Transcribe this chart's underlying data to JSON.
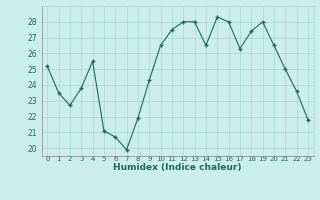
{
  "x": [
    0,
    1,
    2,
    3,
    4,
    5,
    6,
    7,
    8,
    9,
    10,
    11,
    12,
    13,
    14,
    15,
    16,
    17,
    18,
    19,
    20,
    21,
    22,
    23
  ],
  "y": [
    25.2,
    23.5,
    22.7,
    23.8,
    25.5,
    21.1,
    20.7,
    19.9,
    21.9,
    24.3,
    26.5,
    27.5,
    28.0,
    28.0,
    26.5,
    28.3,
    28.0,
    26.3,
    27.4,
    28.0,
    26.5,
    25.0,
    23.6,
    21.8
  ],
  "xlabel": "Humidex (Indice chaleur)",
  "ylim": [
    19.5,
    29.0
  ],
  "xlim": [
    -0.5,
    23.5
  ],
  "yticks": [
    20,
    21,
    22,
    23,
    24,
    25,
    26,
    27,
    28
  ],
  "xticks": [
    0,
    1,
    2,
    3,
    4,
    5,
    6,
    7,
    8,
    9,
    10,
    11,
    12,
    13,
    14,
    15,
    16,
    17,
    18,
    19,
    20,
    21,
    22,
    23
  ],
  "xtick_labels": [
    "0",
    "1",
    "2",
    "3",
    "4",
    "5",
    "6",
    "7",
    "8",
    "9",
    "10",
    "11",
    "12",
    "13",
    "14",
    "15",
    "16",
    "17",
    "18",
    "19",
    "20",
    "21",
    "22",
    "23"
  ],
  "line_color": "#1a6b5a",
  "marker": "+",
  "bg_color": "#cceee8",
  "grid_color": "#aad8d2",
  "xlabel_color": "#1a6b5a",
  "tick_color": "#1a6b5a"
}
